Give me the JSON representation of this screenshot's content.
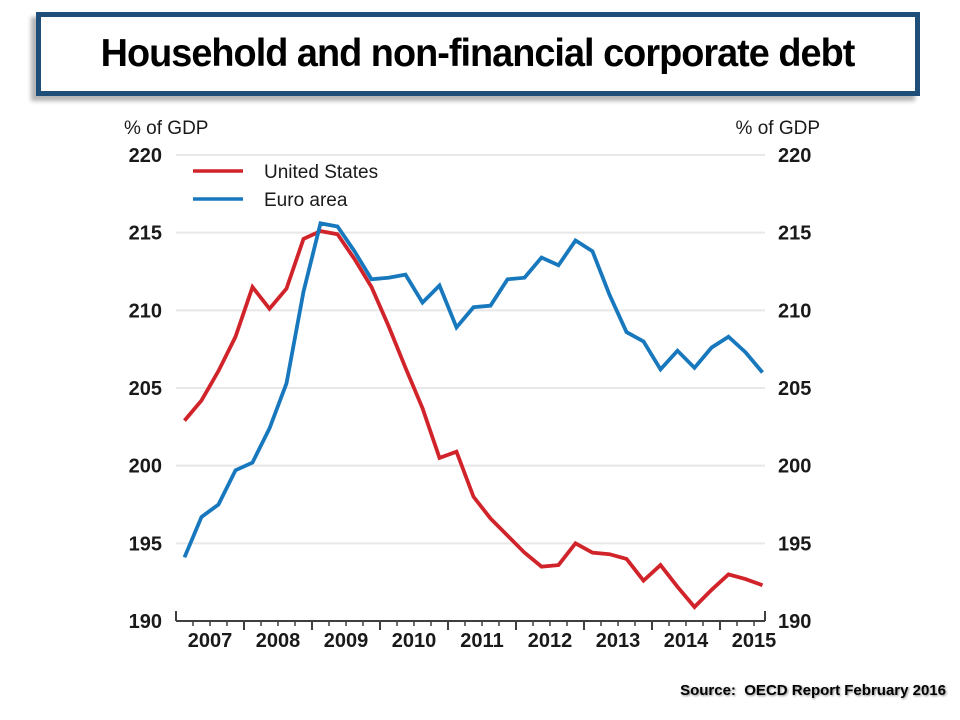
{
  "slide": {
    "title": "Household and non-financial corporate debt",
    "source_label": "Source:",
    "source_text": "OECD Report February 2016"
  },
  "colors": {
    "us_line": "#D1232A",
    "euro_line": "#1878BE",
    "title_border": "#1F4E79",
    "gridline": "#E8E8E8",
    "axis_line": "#3F3F3F",
    "text": "#1A1A1A"
  },
  "chart_data": {
    "type": "line",
    "title": "",
    "ylabel_left": "% of GDP",
    "ylabel_right": "% of GDP",
    "ylim": [
      190,
      220
    ],
    "yticks": [
      190,
      195,
      200,
      205,
      210,
      215,
      220
    ],
    "grid": "horizontal",
    "legend_position": "top-left-inside",
    "frequency": "quarterly",
    "x_start": "2007Q1",
    "x_end": "2015Q3",
    "x_year_labels": [
      "2007",
      "2008",
      "2009",
      "2010",
      "2011",
      "2012",
      "2013",
      "2014",
      "2015"
    ],
    "series": [
      {
        "name": "United States",
        "color_key": "us_line",
        "values": [
          202.9,
          204.2,
          206.1,
          208.3,
          211.5,
          210.1,
          211.4,
          214.6,
          215.1,
          214.9,
          213.3,
          211.5,
          209.0,
          206.3,
          203.7,
          200.5,
          200.9,
          198.0,
          196.6,
          195.5,
          194.4,
          193.5,
          193.6,
          195.0,
          194.4,
          194.3,
          194.0,
          192.6,
          193.6,
          192.2,
          190.9,
          192.0,
          193.0,
          192.7,
          192.3
        ]
      },
      {
        "name": "Euro area",
        "color_key": "euro_line",
        "values": [
          194.1,
          196.7,
          197.5,
          199.7,
          200.2,
          202.4,
          205.3,
          211.2,
          215.6,
          215.4,
          213.8,
          212.0,
          212.1,
          212.3,
          210.5,
          211.6,
          208.9,
          210.2,
          210.3,
          212.0,
          212.1,
          213.4,
          212.9,
          214.5,
          213.8,
          211.0,
          208.6,
          208.0,
          206.2,
          207.4,
          206.3,
          207.6,
          208.3,
          207.3,
          206.0
        ]
      }
    ]
  }
}
